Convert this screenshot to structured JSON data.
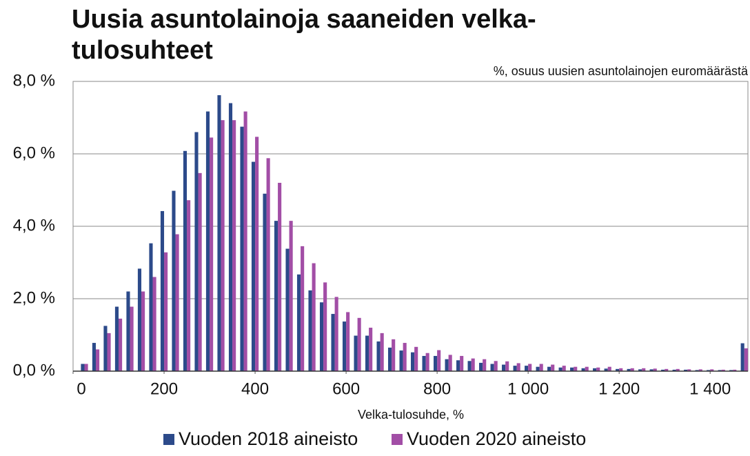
{
  "chart_data": {
    "type": "bar",
    "title": [
      "Uusia asuntolainoja saaneiden velka-",
      "tulosuhteet"
    ],
    "subtitle": "%, osuus uusien asuntolainojen euromäärästä",
    "x_label": "Velka-tulosuhde, %",
    "x": [
      25,
      50,
      75,
      100,
      125,
      150,
      175,
      200,
      225,
      250,
      275,
      300,
      325,
      350,
      375,
      400,
      425,
      450,
      475,
      500,
      525,
      550,
      575,
      600,
      625,
      650,
      675,
      700,
      725,
      750,
      775,
      800,
      825,
      850,
      875,
      900,
      925,
      950,
      975,
      1000,
      1025,
      1050,
      1075,
      1100,
      1125,
      1150,
      1175,
      1200,
      1225,
      1250,
      1275,
      1300,
      1325,
      1350,
      1375,
      1400,
      1425,
      1450,
      1475
    ],
    "series": [
      {
        "name": "Vuoden 2018 aineisto",
        "color": "#2c4a8a",
        "values": [
          0.2,
          0.78,
          1.25,
          1.78,
          2.2,
          2.83,
          3.53,
          4.42,
          4.98,
          6.08,
          6.6,
          7.17,
          7.62,
          7.4,
          6.75,
          5.78,
          4.9,
          4.15,
          3.38,
          2.67,
          2.23,
          1.9,
          1.58,
          1.37,
          0.98,
          0.98,
          0.82,
          0.65,
          0.57,
          0.52,
          0.42,
          0.42,
          0.33,
          0.3,
          0.28,
          0.23,
          0.2,
          0.18,
          0.15,
          0.15,
          0.12,
          0.12,
          0.1,
          0.1,
          0.08,
          0.08,
          0.07,
          0.06,
          0.06,
          0.05,
          0.05,
          0.04,
          0.04,
          0.04,
          0.03,
          0.03,
          0.03,
          0.03,
          0.77
        ]
      },
      {
        "name": "Vuoden 2020 aineisto",
        "color": "#a24ea6",
        "values": [
          0.2,
          0.6,
          1.05,
          1.45,
          1.78,
          2.2,
          2.6,
          3.28,
          3.78,
          4.72,
          5.47,
          6.45,
          6.93,
          6.93,
          7.17,
          6.47,
          5.88,
          5.2,
          4.15,
          3.45,
          2.98,
          2.45,
          2.05,
          1.63,
          1.47,
          1.2,
          1.05,
          0.88,
          0.78,
          0.67,
          0.5,
          0.58,
          0.45,
          0.42,
          0.35,
          0.33,
          0.28,
          0.27,
          0.22,
          0.2,
          0.2,
          0.18,
          0.15,
          0.12,
          0.12,
          0.1,
          0.12,
          0.08,
          0.08,
          0.08,
          0.07,
          0.06,
          0.06,
          0.05,
          0.05,
          0.05,
          0.04,
          0.04,
          0.63
        ]
      }
    ],
    "xlim": [
      0,
      1483
    ],
    "xticks": [
      0,
      200,
      400,
      600,
      800,
      {
        "value": 1000,
        "label": "1 000"
      },
      {
        "value": 1200,
        "label": "1 200"
      },
      {
        "value": 1400,
        "label": "1 400"
      }
    ],
    "ylim": [
      0,
      8
    ],
    "yticks": [
      {
        "value": 0,
        "label": "0,0 %"
      },
      {
        "value": 2,
        "label": "2,0 %"
      },
      {
        "value": 4,
        "label": "4,0 %"
      },
      {
        "value": 6,
        "label": "6,0 %"
      },
      {
        "value": 8,
        "label": "8,0 %"
      }
    ],
    "grid": true,
    "legend": "bottom"
  }
}
